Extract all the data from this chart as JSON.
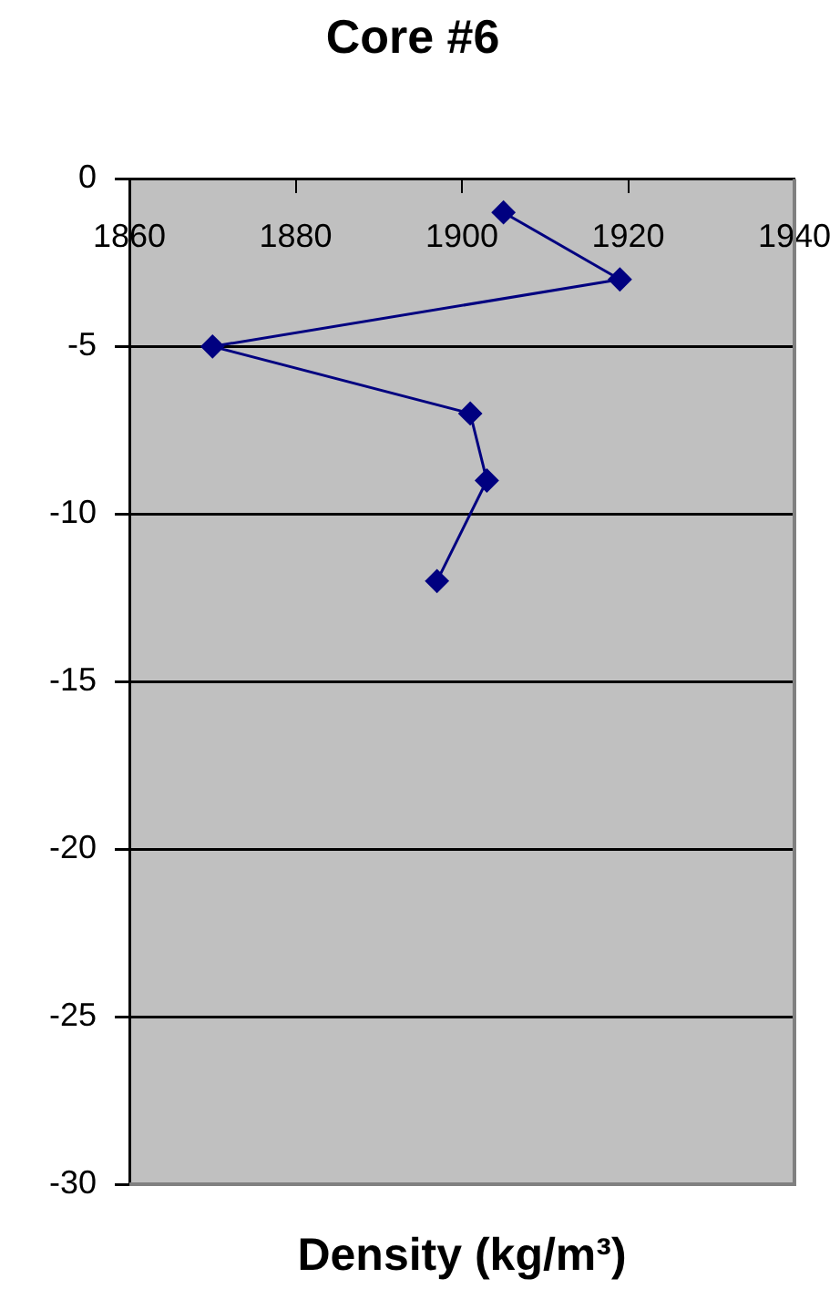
{
  "chart_data": {
    "type": "line",
    "title": "Core #6",
    "xlabel": "Density (kg/m³)",
    "x": [
      1905,
      1919,
      1870,
      1901,
      1903,
      1897
    ],
    "series": [
      {
        "color": "#000080",
        "values": [
          -1,
          -3,
          -5,
          -7,
          -9,
          -12
        ]
      }
    ],
    "xlim": [
      1860,
      1940
    ],
    "xticks": [
      1860,
      1880,
      1900,
      1920,
      1940
    ],
    "ylim": [
      -30,
      0
    ],
    "yticks": [
      -30,
      -25,
      -20,
      -15,
      -10,
      -5,
      0
    ],
    "grid": "y",
    "marker": "diamond",
    "line_style": "solid"
  }
}
